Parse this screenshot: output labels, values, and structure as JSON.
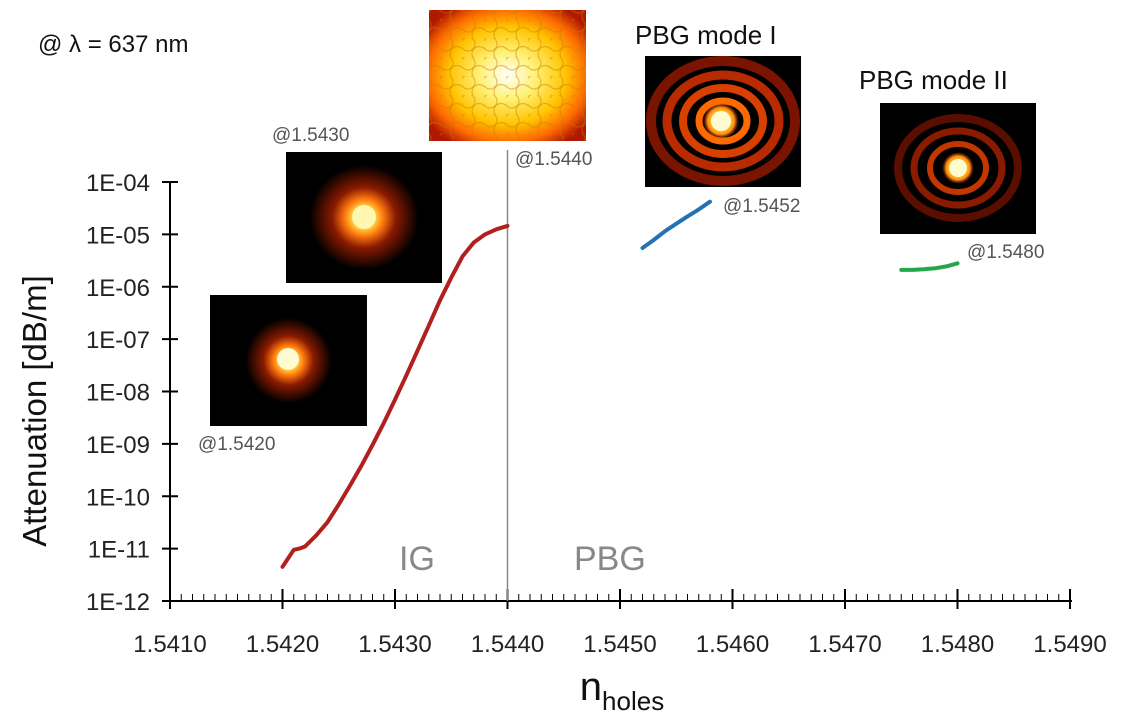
{
  "wavelength_note": "@ λ = 637 nm",
  "mode_titles": {
    "mode1": "PBG mode I",
    "mode2": "PBG mode II"
  },
  "region_labels": {
    "ig": "IG",
    "pbg": "PBG"
  },
  "mode_image_labels": {
    "m1542": "@1.5420",
    "m1543": "@1.5430",
    "m1544": "@1.5440",
    "m15452": "@1.5452",
    "m1548": "@1.5480"
  },
  "chart_data": {
    "type": "line",
    "title": "",
    "xlabel": "n",
    "xlabel_sub": "holes",
    "ylabel": "Attenuation [dB/m]",
    "xlim": [
      1.541,
      1.549
    ],
    "ylim_log10": [
      -12,
      -4
    ],
    "y_scale": "log",
    "x_ticks": [
      "1.5410",
      "1.5420",
      "1.5430",
      "1.5440",
      "1.5450",
      "1.5460",
      "1.5470",
      "1.5480",
      "1.5490"
    ],
    "y_ticks": [
      "1E-04",
      "1E-05",
      "1E-06",
      "1E-07",
      "1E-08",
      "1E-09",
      "1E-10",
      "1E-11",
      "1E-12"
    ],
    "separator_x": 1.544,
    "grid": false,
    "series": [
      {
        "color": "#b21f1f",
        "points": [
          [
            1.542,
            4.5e-12
          ],
          [
            1.54205,
            6.5e-12
          ],
          [
            1.5421,
            9.5e-12
          ],
          [
            1.54215,
            1e-11
          ],
          [
            1.5422,
            1.1e-11
          ],
          [
            1.54225,
            1.4e-11
          ],
          [
            1.5423,
            1.8e-11
          ],
          [
            1.5424,
            3.2e-11
          ],
          [
            1.5425,
            7e-11
          ],
          [
            1.5426,
            1.6e-10
          ],
          [
            1.5427,
            3.8e-10
          ],
          [
            1.5428,
            9.5e-10
          ],
          [
            1.5429,
            2.5e-09
          ],
          [
            1.543,
            7e-09
          ],
          [
            1.5431,
            2e-08
          ],
          [
            1.5432,
            6e-08
          ],
          [
            1.5433,
            1.8e-07
          ],
          [
            1.5434,
            5.5e-07
          ],
          [
            1.5435,
            1.5e-06
          ],
          [
            1.5436,
            3.8e-06
          ],
          [
            1.5437,
            7e-06
          ],
          [
            1.5438,
            1e-05
          ],
          [
            1.5439,
            1.25e-05
          ],
          [
            1.544,
            1.45e-05
          ]
        ]
      },
      {
        "color": "#2272b4",
        "points": [
          [
            1.5452,
            5.5e-06
          ],
          [
            1.5453,
            7.8e-06
          ],
          [
            1.5454,
            1.15e-05
          ],
          [
            1.5455,
            1.6e-05
          ],
          [
            1.5456,
            2.2e-05
          ],
          [
            1.5457,
            3e-05
          ],
          [
            1.5458,
            4.2e-05
          ]
        ]
      },
      {
        "color": "#22a84a",
        "points": [
          [
            1.5475,
            2.1e-06
          ],
          [
            1.5476,
            2.1e-06
          ],
          [
            1.5477,
            2.15e-06
          ],
          [
            1.5478,
            2.25e-06
          ],
          [
            1.5479,
            2.45e-06
          ],
          [
            1.548,
            2.8e-06
          ]
        ]
      }
    ]
  }
}
